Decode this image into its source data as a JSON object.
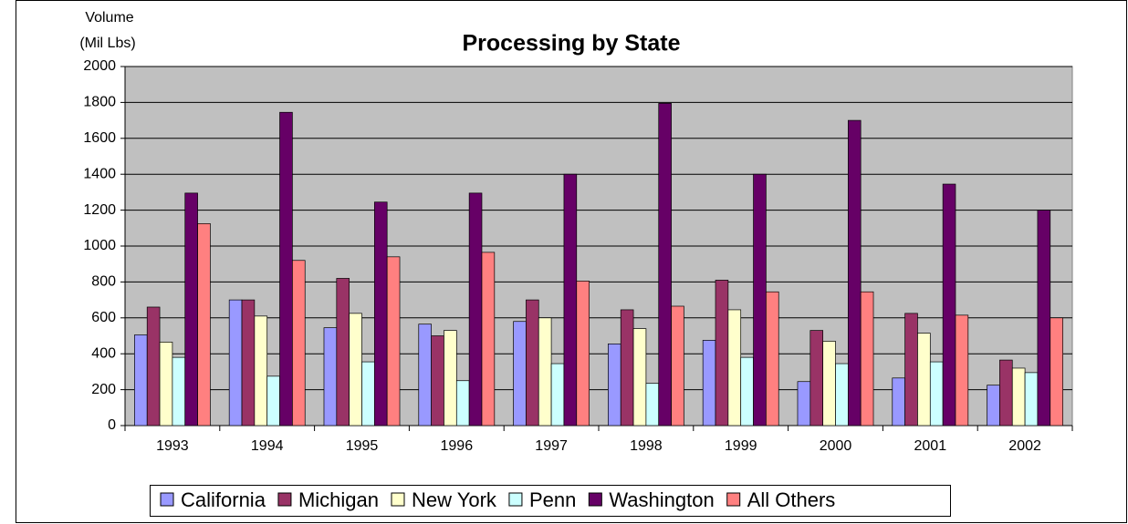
{
  "chart_data": {
    "type": "bar",
    "title": "Processing by State",
    "y_label": [
      "Volume",
      "(Mil Lbs)"
    ],
    "categories": [
      "1993",
      "1994",
      "1995",
      "1996",
      "1997",
      "1998",
      "1999",
      "2000",
      "2001",
      "2002"
    ],
    "series": [
      {
        "name": "California",
        "color": "#9999ff",
        "values": [
          505,
          700,
          545,
          565,
          580,
          455,
          475,
          245,
          265,
          225
        ]
      },
      {
        "name": "Michigan",
        "color": "#993366",
        "values": [
          660,
          700,
          820,
          500,
          700,
          645,
          810,
          530,
          625,
          365
        ]
      },
      {
        "name": "New York",
        "color": "#ffffcc",
        "values": [
          465,
          610,
          625,
          530,
          600,
          540,
          645,
          470,
          515,
          320
        ]
      },
      {
        "name": "Penn",
        "color": "#ccffff",
        "values": [
          380,
          275,
          355,
          250,
          345,
          235,
          380,
          345,
          355,
          295
        ]
      },
      {
        "name": "Washington",
        "color": "#660066",
        "values": [
          1295,
          1745,
          1245,
          1295,
          1400,
          1795,
          1400,
          1700,
          1345,
          1200
        ]
      },
      {
        "name": "All Others",
        "color": "#ff8080",
        "values": [
          1125,
          920,
          940,
          965,
          805,
          665,
          745,
          745,
          615,
          600
        ]
      }
    ],
    "ylim": [
      0,
      2000
    ],
    "yticks": [
      0,
      200,
      400,
      600,
      800,
      1000,
      1200,
      1400,
      1600,
      1800,
      2000
    ],
    "grid": true,
    "legend": "bottom"
  }
}
